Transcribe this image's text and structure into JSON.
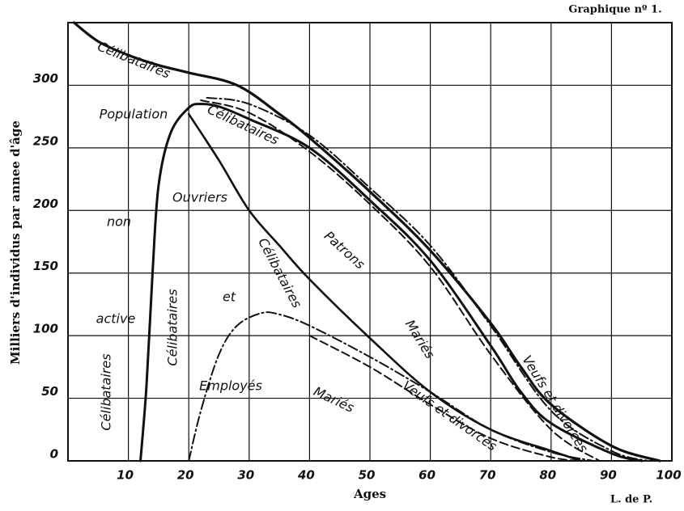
{
  "chart_data": {
    "type": "line",
    "title": "Graphique nº 1.",
    "source": "L. de P.",
    "xlabel": "Ages",
    "ylabel": "Milliers d'individus par annee d'âge",
    "xlim": [
      0,
      100
    ],
    "ylim": [
      0,
      350
    ],
    "xticks": [
      10,
      20,
      30,
      40,
      50,
      60,
      70,
      80,
      90,
      100
    ],
    "yticks": [
      0,
      50,
      100,
      150,
      200,
      250,
      300
    ],
    "grid": true,
    "series": [
      {
        "color": "#111111",
        "style": "solid",
        "width": 3.2,
        "x": [
          1,
          5,
          10,
          15,
          20,
          28,
          35,
          40,
          50,
          60,
          70,
          75,
          80,
          90,
          98
        ],
        "values": [
          350,
          335,
          324,
          316,
          310,
          300,
          277,
          258,
          215,
          168,
          110,
          75,
          45,
          12,
          0
        ]
      },
      {
        "color": "#111111",
        "style": "solid",
        "width": 3,
        "x": [
          12,
          13,
          14,
          15,
          17,
          20,
          22,
          25,
          30,
          40,
          50,
          60,
          70,
          75,
          80,
          90,
          95
        ],
        "values": [
          0,
          60,
          150,
          220,
          262,
          282,
          285,
          283,
          273,
          250,
          208,
          160,
          92,
          55,
          30,
          6,
          0
        ]
      },
      {
        "color": "#111111",
        "style": "solid",
        "width": 2.6,
        "x": [
          20,
          25,
          30,
          35,
          40,
          50,
          60,
          70,
          80,
          85
        ],
        "values": [
          277,
          240,
          200,
          172,
          145,
          98,
          55,
          25,
          8,
          0
        ]
      },
      {
        "color": "#111111",
        "style": "dashdot",
        "width": 2,
        "x": [
          20,
          22,
          25,
          28,
          32,
          35,
          40,
          50,
          60,
          70,
          80,
          87
        ],
        "values": [
          0,
          40,
          85,
          108,
          118,
          117,
          108,
          83,
          55,
          25,
          7,
          0
        ]
      },
      {
        "color": "#111111",
        "style": "dashed",
        "width": 2,
        "x": [
          40,
          50,
          60,
          70,
          80,
          85
        ],
        "values": [
          100,
          75,
          45,
          18,
          3,
          0
        ]
      },
      {
        "color": "#111111",
        "style": "dashdot",
        "width": 2,
        "x": [
          23,
          30,
          40,
          50,
          60,
          70,
          80,
          90,
          96
        ],
        "values": [
          290,
          285,
          260,
          218,
          172,
          108,
          40,
          8,
          0
        ]
      },
      {
        "color": "#111111",
        "style": "dashed",
        "width": 2,
        "x": [
          22,
          30,
          40,
          50,
          60,
          70,
          80,
          88
        ],
        "values": [
          288,
          278,
          247,
          205,
          155,
          85,
          25,
          0
        ]
      }
    ],
    "annotations": [
      "Célibataires",
      "Population",
      "Célibataires",
      "non",
      "Ouvriers",
      "Célibataires",
      "Patrons",
      "active",
      "et",
      "Célibataires",
      "Célibataires",
      "Employés",
      "Mariés",
      "Mariés",
      "Veufs et divorcés",
      "Veufs et divorcés"
    ]
  }
}
